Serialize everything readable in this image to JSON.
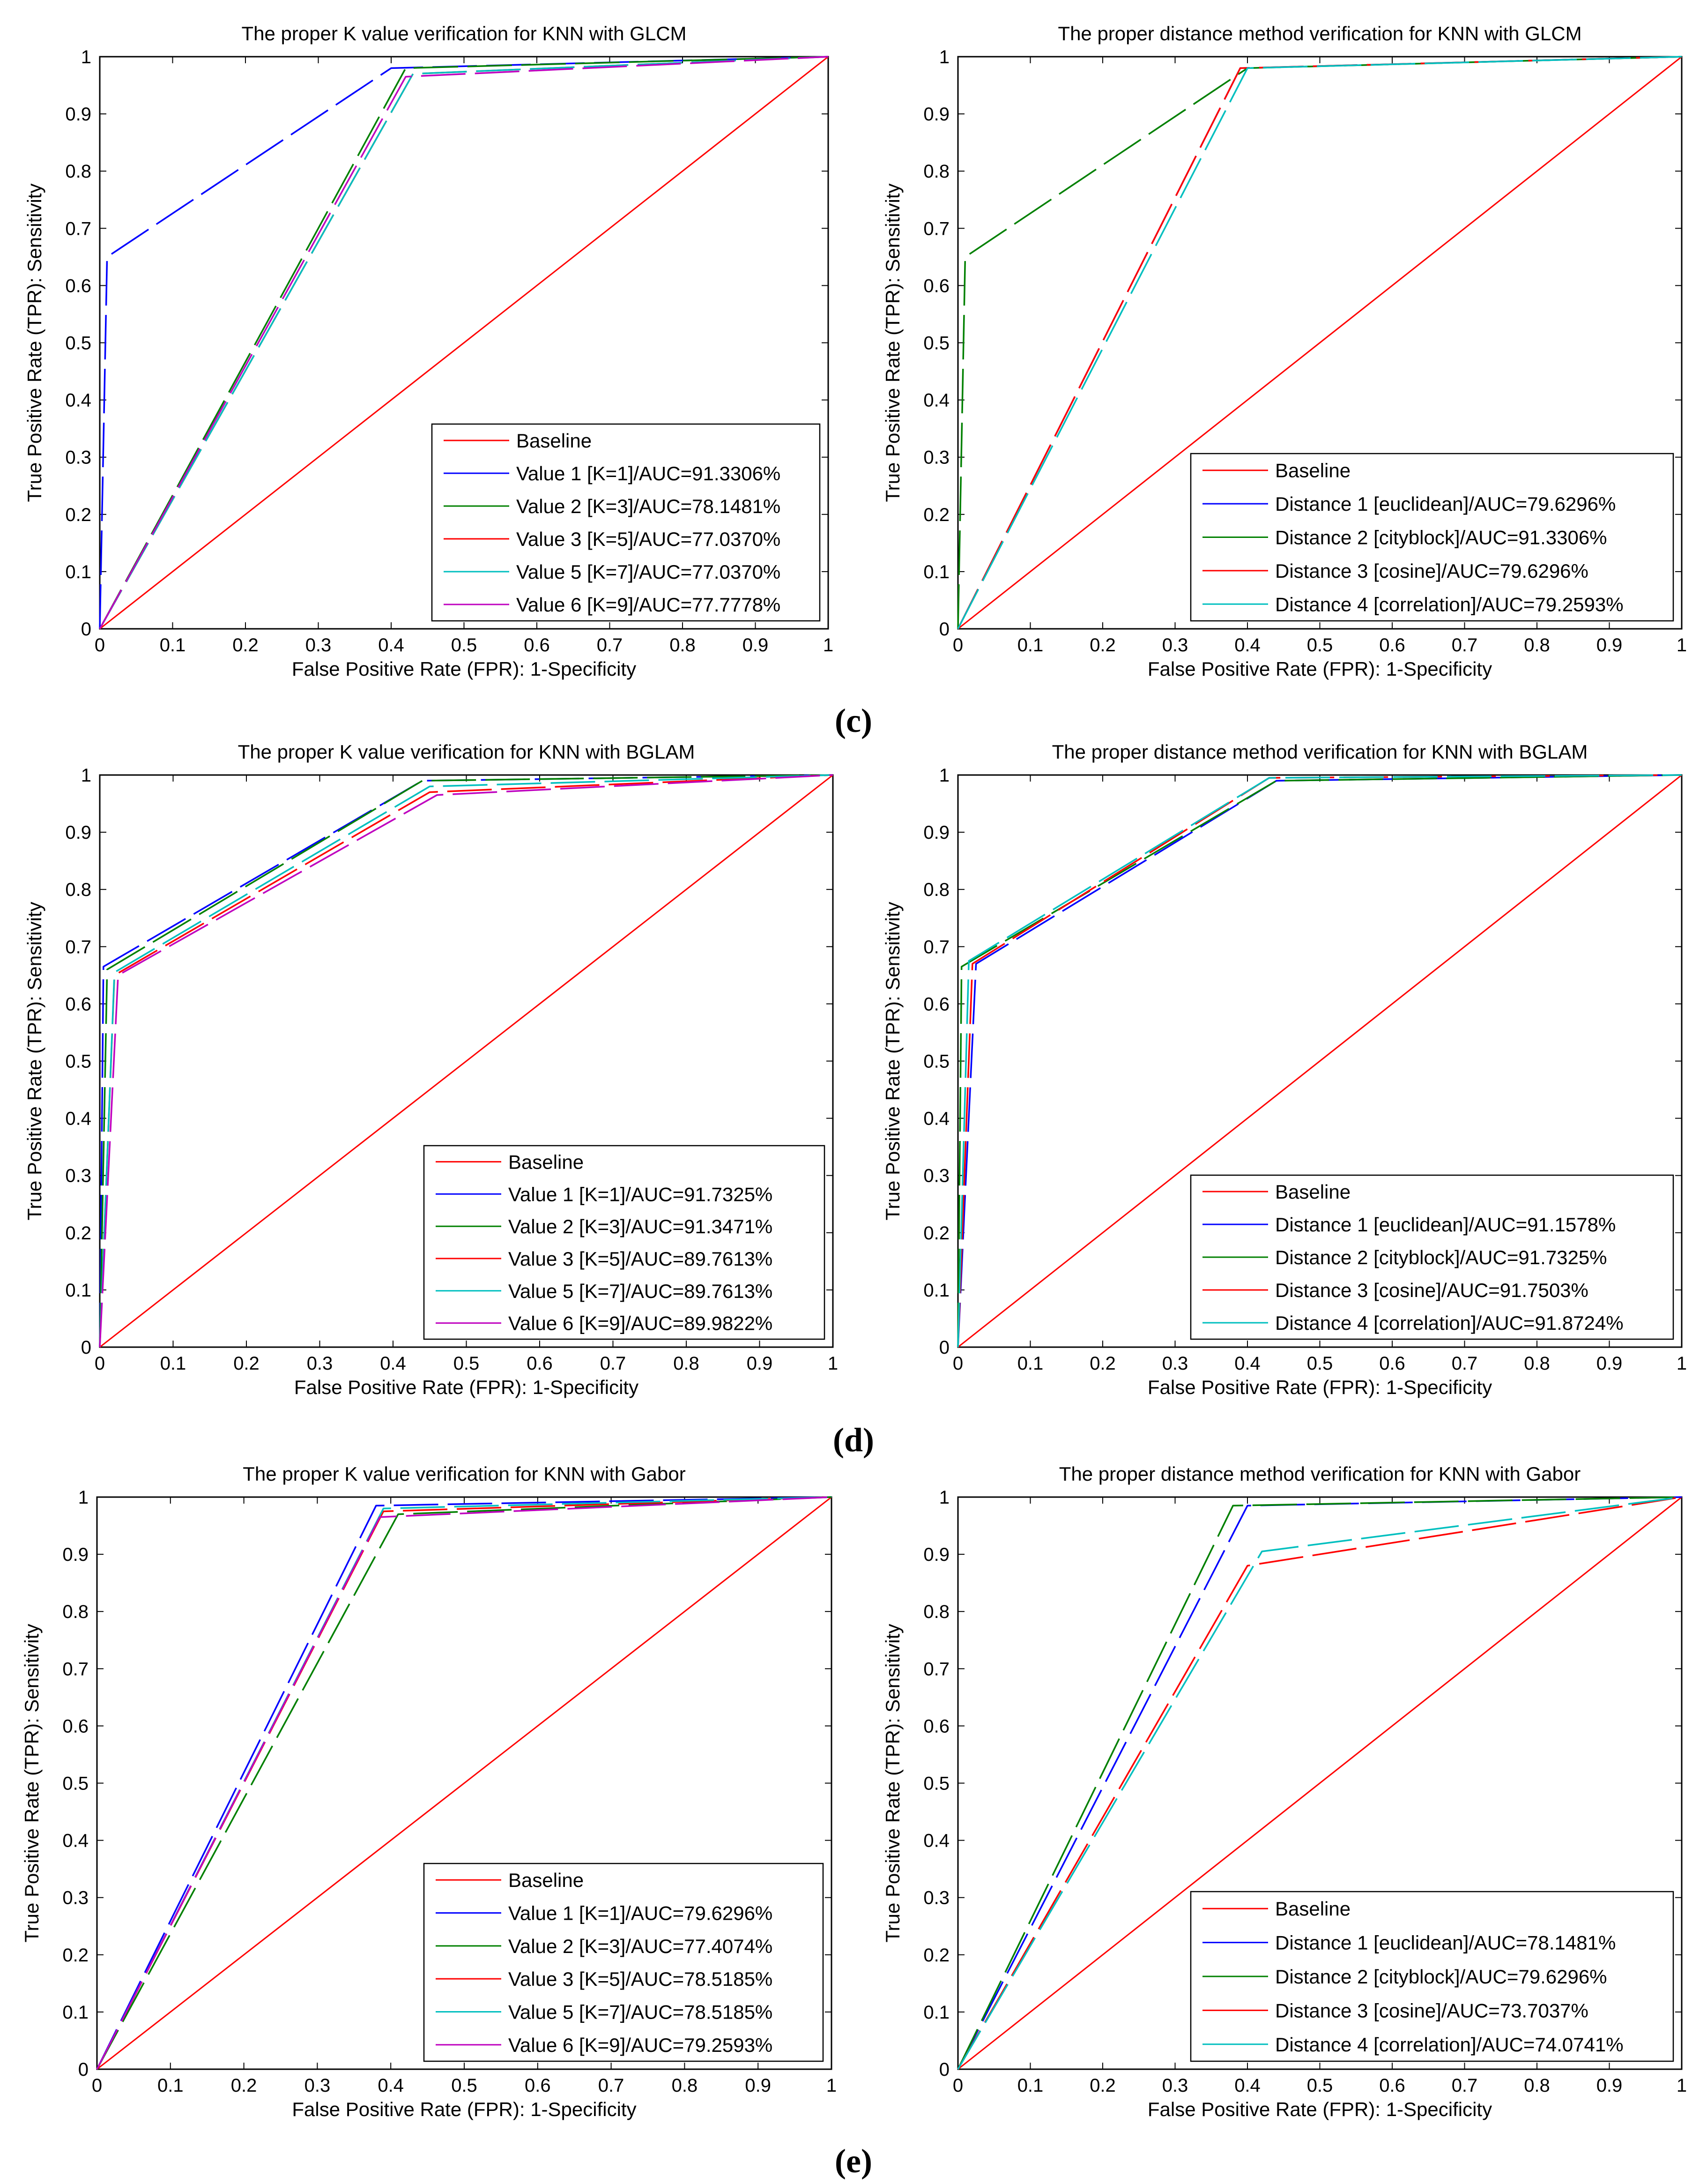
{
  "chart_data": [
    {
      "type": "line",
      "title": "The proper K value verification for KNN with GLCM",
      "xlabel": "False Positive Rate (FPR): 1-Specificity",
      "ylabel": "True  Positive Rate (TPR):  Sensitivity",
      "xlim": [
        0,
        1
      ],
      "ylim": [
        0,
        1
      ],
      "xticks": [
        "0",
        "0.1",
        "0.2",
        "0.3",
        "0.4",
        "0.5",
        "0.6",
        "0.7",
        "0.8",
        "0.9",
        "1"
      ],
      "yticks": [
        "0",
        "0.1",
        "0.2",
        "0.3",
        "0.4",
        "0.5",
        "0.6",
        "0.7",
        "0.8",
        "0.9",
        "1"
      ],
      "legend_position": "bottom-right",
      "series": [
        {
          "name": "Baseline",
          "color": "#ff0000",
          "style": "solid",
          "x": [
            0,
            1
          ],
          "y": [
            0,
            1
          ]
        },
        {
          "name": "Value 1 [K=1]/AUC=91.3306%",
          "color": "#0000ff",
          "style": "dashed",
          "x": [
            0,
            0.01,
            0.4,
            1
          ],
          "y": [
            0,
            0.65,
            0.98,
            1
          ]
        },
        {
          "name": "Value 2 [K=3]/AUC=78.1481%",
          "color": "#008000",
          "style": "dashed",
          "x": [
            0,
            0.42,
            1
          ],
          "y": [
            0,
            0.98,
            1
          ]
        },
        {
          "name": "Value 3 [K=5]/AUC=77.0370%",
          "color": "#ff0000",
          "style": "dashed",
          "x": [
            0,
            0.43,
            1
          ],
          "y": [
            0,
            0.97,
            1
          ]
        },
        {
          "name": "Value 5 [K=7]/AUC=77.0370%",
          "color": "#00bfbf",
          "style": "dashed",
          "x": [
            0,
            0.43,
            1
          ],
          "y": [
            0,
            0.97,
            1
          ]
        },
        {
          "name": "Value 6 [K=9]/AUC=77.7778%",
          "color": "#bf00bf",
          "style": "dashed",
          "x": [
            0,
            0.42,
            1
          ],
          "y": [
            0,
            0.965,
            1
          ]
        }
      ]
    },
    {
      "type": "line",
      "title": "The proper distance method verification for KNN with GLCM",
      "xlabel": "False Positive Rate (FPR): 1-Specificity",
      "ylabel": "True  Positive Rate (TPR):  Sensitivity",
      "xlim": [
        0,
        1
      ],
      "ylim": [
        0,
        1
      ],
      "xticks": [
        "0",
        "0.1",
        "0.2",
        "0.3",
        "0.4",
        "0.5",
        "0.6",
        "0.7",
        "0.8",
        "0.9",
        "1"
      ],
      "yticks": [
        "0",
        "0.1",
        "0.2",
        "0.3",
        "0.4",
        "0.5",
        "0.6",
        "0.7",
        "0.8",
        "0.9",
        "1"
      ],
      "legend_position": "bottom-right",
      "series": [
        {
          "name": "Baseline",
          "color": "#ff0000",
          "style": "solid",
          "x": [
            0,
            1
          ],
          "y": [
            0,
            1
          ]
        },
        {
          "name": "Distance 1 [euclidean]/AUC=79.6296%",
          "color": "#0000ff",
          "style": "dashed",
          "x": [
            0,
            0.39,
            1
          ],
          "y": [
            0,
            0.98,
            1
          ]
        },
        {
          "name": "Distance 2 [cityblock]/AUC=91.3306%",
          "color": "#008000",
          "style": "dashed",
          "x": [
            0,
            0.01,
            0.4,
            1
          ],
          "y": [
            0,
            0.65,
            0.98,
            1
          ]
        },
        {
          "name": "Distance 3 [cosine]/AUC=79.6296%",
          "color": "#ff0000",
          "style": "dashed",
          "x": [
            0,
            0.39,
            1
          ],
          "y": [
            0,
            0.98,
            1
          ]
        },
        {
          "name": "Distance 4 [correlation]/AUC=79.2593%",
          "color": "#00bfbf",
          "style": "dashed",
          "x": [
            0,
            0.4,
            1
          ],
          "y": [
            0,
            0.98,
            1
          ]
        }
      ]
    },
    {
      "type": "line",
      "title": "The proper K value verification for KNN with BGLAM",
      "xlabel": "False Positive Rate (FPR): 1-Specificity",
      "ylabel": "True  Positive Rate (TPR):  Sensitivity",
      "xlim": [
        0,
        1
      ],
      "ylim": [
        0,
        1
      ],
      "xticks": [
        "0",
        "0.1",
        "0.2",
        "0.3",
        "0.4",
        "0.5",
        "0.6",
        "0.7",
        "0.8",
        "0.9",
        "1"
      ],
      "yticks": [
        "0",
        "0.1",
        "0.2",
        "0.3",
        "0.4",
        "0.5",
        "0.6",
        "0.7",
        "0.8",
        "0.9",
        "1"
      ],
      "legend_position": "bottom-right",
      "series": [
        {
          "name": "Baseline",
          "color": "#ff0000",
          "style": "solid",
          "x": [
            0,
            1
          ],
          "y": [
            0,
            1
          ]
        },
        {
          "name": "Value 1 [K=1]/AUC=91.7325%",
          "color": "#0000ff",
          "style": "dashed",
          "x": [
            0,
            0.005,
            0.44,
            1
          ],
          "y": [
            0,
            0.665,
            0.99,
            1
          ]
        },
        {
          "name": "Value 2 [K=3]/AUC=91.3471%",
          "color": "#008000",
          "style": "dashed",
          "x": [
            0,
            0.01,
            0.44,
            1
          ],
          "y": [
            0,
            0.66,
            0.99,
            1
          ]
        },
        {
          "name": "Value 3 [K=5]/AUC=89.7613%",
          "color": "#ff0000",
          "style": "dashed",
          "x": [
            0,
            0.02,
            0.45,
            1
          ],
          "y": [
            0,
            0.65,
            0.97,
            1
          ]
        },
        {
          "name": "Value 5 [K=7]/AUC=89.7613%",
          "color": "#00bfbf",
          "style": "dashed",
          "x": [
            0,
            0.02,
            0.45,
            1
          ],
          "y": [
            0,
            0.655,
            0.98,
            1
          ]
        },
        {
          "name": "Value 6 [K=9]/AUC=89.9822%",
          "color": "#bf00bf",
          "style": "dashed",
          "x": [
            0,
            0.025,
            0.46,
            1
          ],
          "y": [
            0,
            0.65,
            0.965,
            1
          ]
        }
      ]
    },
    {
      "type": "line",
      "title": "The proper distance method verification for KNN with BGLAM",
      "xlabel": "False Positive Rate (FPR): 1-Specificity",
      "ylabel": "True  Positive Rate (TPR):  Sensitivity",
      "xlim": [
        0,
        1
      ],
      "ylim": [
        0,
        1
      ],
      "xticks": [
        "0",
        "0.1",
        "0.2",
        "0.3",
        "0.4",
        "0.5",
        "0.6",
        "0.7",
        "0.8",
        "0.9",
        "1"
      ],
      "yticks": [
        "0",
        "0.1",
        "0.2",
        "0.3",
        "0.4",
        "0.5",
        "0.6",
        "0.7",
        "0.8",
        "0.9",
        "1"
      ],
      "legend_position": "bottom-right",
      "series": [
        {
          "name": "Baseline",
          "color": "#ff0000",
          "style": "solid",
          "x": [
            0,
            1
          ],
          "y": [
            0,
            1
          ]
        },
        {
          "name": "Distance 1 [euclidean]/AUC=91.1578%",
          "color": "#0000ff",
          "style": "dashed",
          "x": [
            0,
            0.025,
            0.44,
            1
          ],
          "y": [
            0,
            0.67,
            0.99,
            1
          ]
        },
        {
          "name": "Distance 2 [cityblock]/AUC=91.7325%",
          "color": "#008000",
          "style": "dashed",
          "x": [
            0,
            0.005,
            0.44,
            1
          ],
          "y": [
            0,
            0.665,
            0.99,
            1
          ]
        },
        {
          "name": "Distance 3 [cosine]/AUC=91.7503%",
          "color": "#ff0000",
          "style": "dashed",
          "x": [
            0,
            0.02,
            0.43,
            1
          ],
          "y": [
            0,
            0.67,
            0.995,
            1
          ]
        },
        {
          "name": "Distance 4 [correlation]/AUC=91.8724%",
          "color": "#00bfbf",
          "style": "dashed",
          "x": [
            0,
            0.015,
            0.43,
            1
          ],
          "y": [
            0,
            0.675,
            0.995,
            1
          ]
        }
      ]
    },
    {
      "type": "line",
      "title": "The proper K value verification for KNN with Gabor",
      "xlabel": "False Positive Rate (FPR): 1-Specificity",
      "ylabel": "True  Positive Rate (TPR):  Sensitivity",
      "xlim": [
        0,
        1
      ],
      "ylim": [
        0,
        1
      ],
      "xticks": [
        "0",
        "0.1",
        "0.2",
        "0.3",
        "0.4",
        "0.5",
        "0.6",
        "0.7",
        "0.8",
        "0.9",
        "1"
      ],
      "yticks": [
        "0",
        "0.1",
        "0.2",
        "0.3",
        "0.4",
        "0.5",
        "0.6",
        "0.7",
        "0.8",
        "0.9",
        "1"
      ],
      "legend_position": "bottom-right",
      "series": [
        {
          "name": "Baseline",
          "color": "#ff0000",
          "style": "solid",
          "x": [
            0,
            1
          ],
          "y": [
            0,
            1
          ]
        },
        {
          "name": "Value 1 [K=1]/AUC=79.6296%",
          "color": "#0000ff",
          "style": "dashed",
          "x": [
            0,
            0.38,
            1
          ],
          "y": [
            0,
            0.985,
            1
          ]
        },
        {
          "name": "Value 2 [K=3]/AUC=77.4074%",
          "color": "#008000",
          "style": "dashed",
          "x": [
            0,
            0.41,
            1
          ],
          "y": [
            0,
            0.97,
            1
          ]
        },
        {
          "name": "Value 3 [K=5]/AUC=78.5185%",
          "color": "#ff0000",
          "style": "dashed",
          "x": [
            0,
            0.39,
            1
          ],
          "y": [
            0,
            0.975,
            1
          ]
        },
        {
          "name": "Value 5 [K=7]/AUC=78.5185%",
          "color": "#00bfbf",
          "style": "dashed",
          "x": [
            0,
            0.39,
            1
          ],
          "y": [
            0,
            0.98,
            1
          ]
        },
        {
          "name": "Value 6 [K=9]/AUC=79.2593%",
          "color": "#bf00bf",
          "style": "dashed",
          "x": [
            0,
            0.385,
            1
          ],
          "y": [
            0,
            0.965,
            1
          ]
        }
      ]
    },
    {
      "type": "line",
      "title": "The proper distance method verification for KNN with Gabor",
      "xlabel": "False Positive Rate (FPR): 1-Specificity",
      "ylabel": "True  Positive Rate (TPR):  Sensitivity",
      "xlim": [
        0,
        1
      ],
      "ylim": [
        0,
        1
      ],
      "xticks": [
        "0",
        "0.1",
        "0.2",
        "0.3",
        "0.4",
        "0.5",
        "0.6",
        "0.7",
        "0.8",
        "0.9",
        "1"
      ],
      "yticks": [
        "0",
        "0.1",
        "0.2",
        "0.3",
        "0.4",
        "0.5",
        "0.6",
        "0.7",
        "0.8",
        "0.9",
        "1"
      ],
      "legend_position": "bottom-right",
      "series": [
        {
          "name": "Baseline",
          "color": "#ff0000",
          "style": "solid",
          "x": [
            0,
            1
          ],
          "y": [
            0,
            1
          ]
        },
        {
          "name": "Distance 1 [euclidean]/AUC=78.1481%",
          "color": "#0000ff",
          "style": "dashed",
          "x": [
            0,
            0.4,
            1
          ],
          "y": [
            0,
            0.985,
            1
          ]
        },
        {
          "name": "Distance 2 [cityblock]/AUC=79.6296%",
          "color": "#008000",
          "style": "dashed",
          "x": [
            0,
            0.38,
            1
          ],
          "y": [
            0,
            0.985,
            1
          ]
        },
        {
          "name": "Distance 3 [cosine]/AUC=73.7037%",
          "color": "#ff0000",
          "style": "dashed",
          "x": [
            0,
            0.4,
            1
          ],
          "y": [
            0,
            0.88,
            1
          ]
        },
        {
          "name": "Distance 4 [correlation]/AUC=74.0741%",
          "color": "#00bfbf",
          "style": "dashed",
          "x": [
            0,
            0.42,
            1
          ],
          "y": [
            0,
            0.905,
            1
          ]
        }
      ]
    }
  ],
  "panel_labels": [
    "(c)",
    "(d)",
    "(e)"
  ]
}
